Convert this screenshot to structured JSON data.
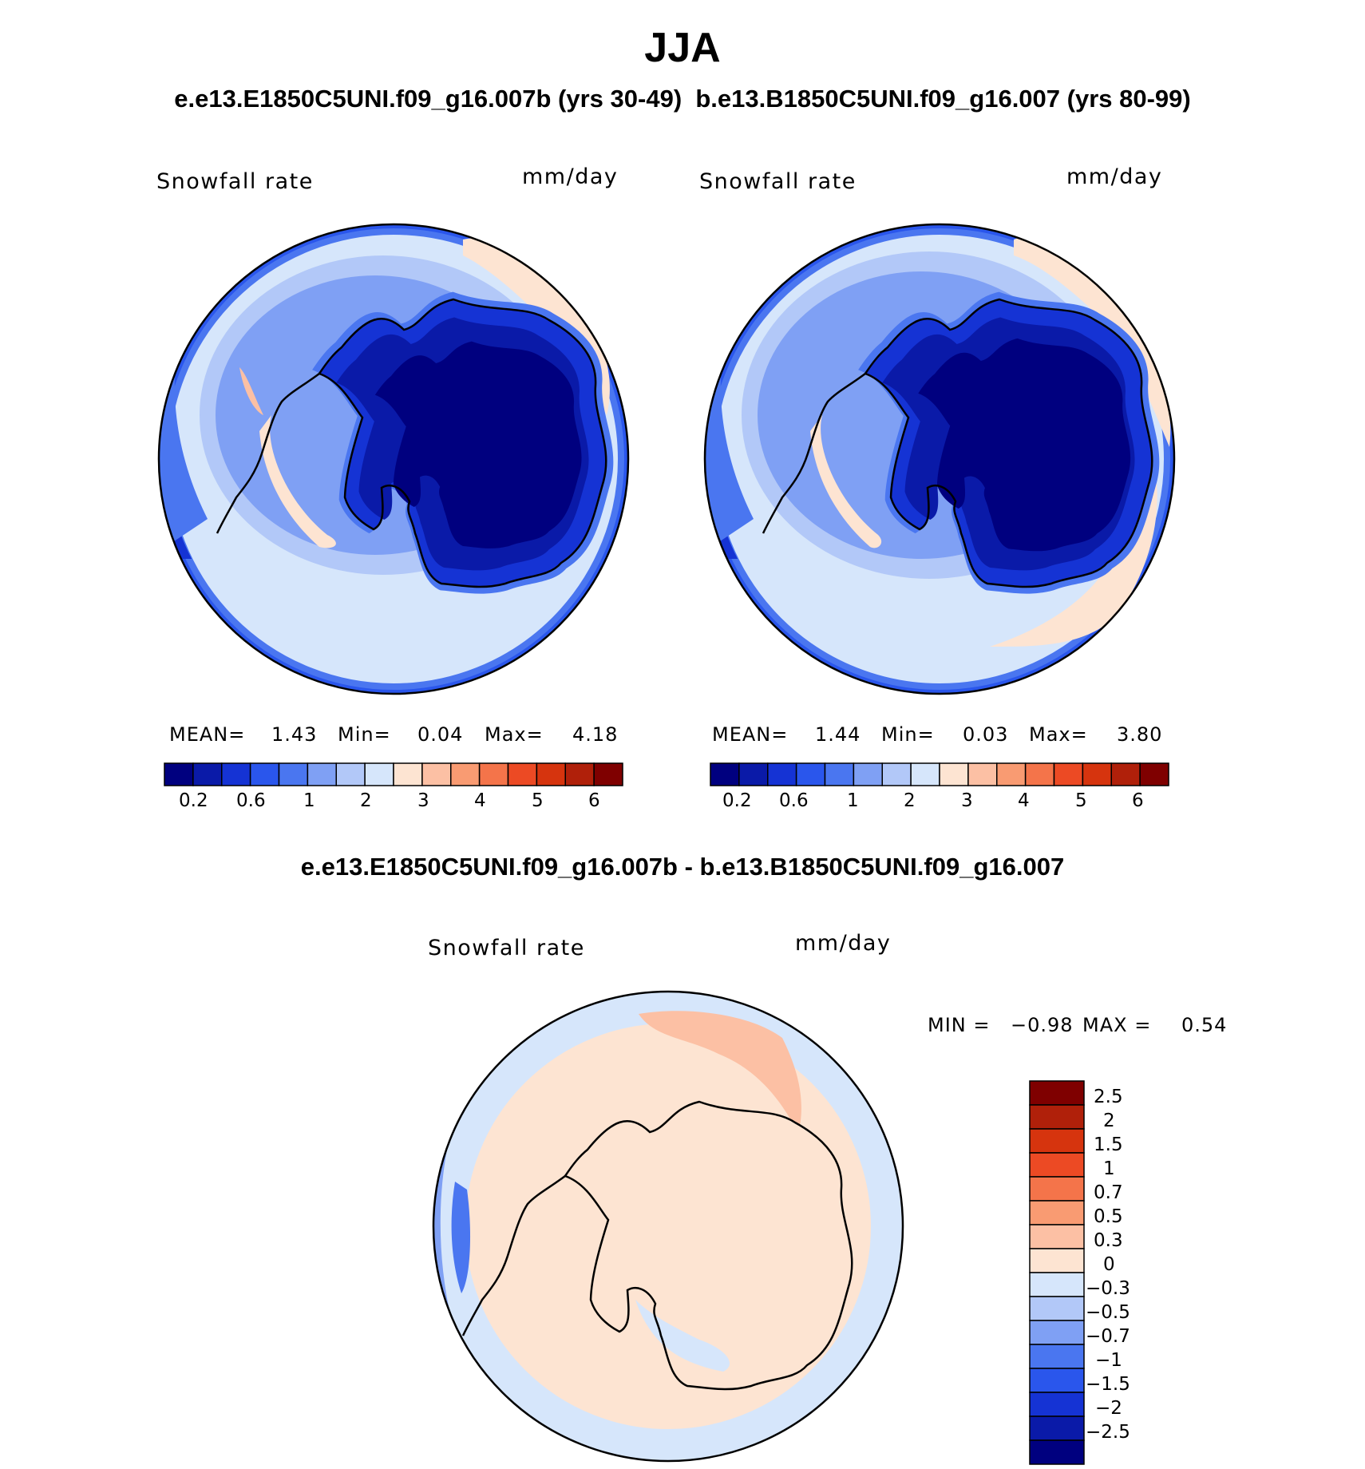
{
  "title": "JJA",
  "subtitle": "e.e13.E1850C5UNI.f09_g16.007b (yrs 30-49)  b.e13.B1850C5UNI.f09_g16.007 (yrs 80-99)",
  "diff_title": "e.e13.E1850C5UNI.f09_g16.007b - b.e13.B1850C5UNI.f09_g16.007",
  "panels": [
    {
      "variable": "Snowfall rate",
      "units": "mm/day",
      "stats": {
        "mean_label": "MEAN=",
        "mean": "1.43",
        "min_label": "Min=",
        "min": "0.04",
        "max_label": "Max=",
        "max": "4.18"
      }
    },
    {
      "variable": "Snowfall rate",
      "units": "mm/day",
      "stats": {
        "mean_label": "MEAN=",
        "mean": "1.44",
        "min_label": "Min=",
        "min": "0.03",
        "max_label": "Max=",
        "max": "3.80"
      }
    },
    {
      "variable": "Snowfall rate",
      "units": "mm/day",
      "stats": {
        "min_label": "MIN =",
        "min": "−0.98",
        "max_label": "MAX =",
        "max": "0.54"
      }
    }
  ],
  "colorbar_colors": [
    "#00007f",
    "#0a1aa8",
    "#1533d4",
    "#2a56ec",
    "#4a76f0",
    "#7fa0f4",
    "#b2c8f8",
    "#d6e6fb",
    "#fde4d2",
    "#fcc0a4",
    "#f99b72",
    "#f4744a",
    "#ec4a24",
    "#d6340e",
    "#b0200a",
    "#7f0000"
  ],
  "colorbar_labels": [
    "0.2",
    "0.6",
    "1",
    "2",
    "3",
    "4",
    "5",
    "6"
  ],
  "diff_colorbar_labels": [
    "2.5",
    "2",
    "1.5",
    "1",
    "0.7",
    "0.5",
    "0.3",
    "0",
    "−0.3",
    "−0.5",
    "−0.7",
    "−1",
    "−1.5",
    "−2",
    "−2.5"
  ],
  "chart_data": [
    {
      "type": "heatmap",
      "projection": "south-polar stereographic",
      "variable": "Snowfall rate",
      "units": "mm/day",
      "season": "JJA",
      "case": "e.e13.E1850C5UNI.f09_g16.007b (yrs 30-49)",
      "mean": 1.43,
      "min": 0.04,
      "max": 4.18,
      "levels": [
        0.2,
        0.4,
        0.6,
        0.8,
        1,
        1.5,
        2,
        2.5,
        3,
        3.5,
        4,
        4.5,
        5,
        5.5,
        6
      ],
      "colorbar_tick_labels": [
        "0.2",
        "0.6",
        "1",
        "2",
        "3",
        "4",
        "5",
        "6"
      ]
    },
    {
      "type": "heatmap",
      "projection": "south-polar stereographic",
      "variable": "Snowfall rate",
      "units": "mm/day",
      "season": "JJA",
      "case": "b.e13.B1850C5UNI.f09_g16.007 (yrs 80-99)",
      "mean": 1.44,
      "min": 0.03,
      "max": 3.8,
      "levels": [
        0.2,
        0.4,
        0.6,
        0.8,
        1,
        1.5,
        2,
        2.5,
        3,
        3.5,
        4,
        4.5,
        5,
        5.5,
        6
      ],
      "colorbar_tick_labels": [
        "0.2",
        "0.6",
        "1",
        "2",
        "3",
        "4",
        "5",
        "6"
      ]
    },
    {
      "type": "heatmap",
      "projection": "south-polar stereographic",
      "variable": "Snowfall rate",
      "units": "mm/day",
      "season": "JJA",
      "case": "e.e13.E1850C5UNI.f09_g16.007b - b.e13.B1850C5UNI.f09_g16.007",
      "min": -0.98,
      "max": 0.54,
      "levels": [
        -2.5,
        -2,
        -1.5,
        -1,
        -0.7,
        -0.5,
        -0.3,
        0,
        0.3,
        0.5,
        0.7,
        1,
        1.5,
        2,
        2.5
      ],
      "colorbar_tick_labels": [
        "2.5",
        "2",
        "1.5",
        "1",
        "0.7",
        "0.5",
        "0.3",
        "0",
        "−0.3",
        "−0.5",
        "−0.7",
        "−1",
        "−1.5",
        "−2",
        "−2.5"
      ]
    }
  ]
}
